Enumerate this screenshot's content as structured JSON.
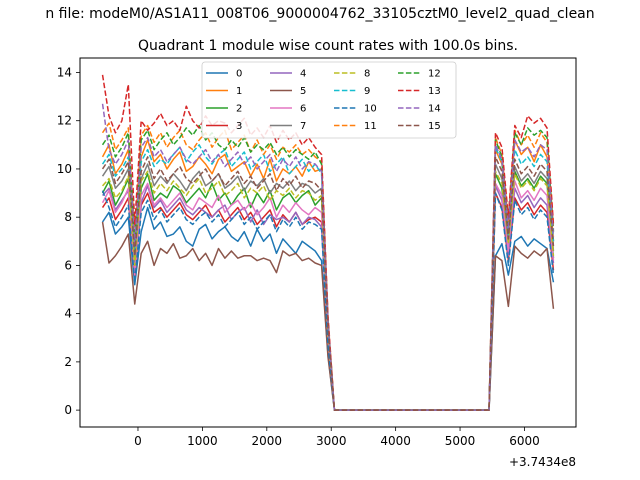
{
  "chart_data": {
    "type": "line",
    "suptitle": "n file: modeM0/AS1A11_008T06_9000004762_33105cztM0_level2_quad_clean",
    "title": "Quadrant 1 module wise count rates with 100.0s bins.",
    "x_offset_label": "+3.7434e8",
    "xlabel": "",
    "ylabel": "",
    "xlim": [
      -900,
      6800
    ],
    "ylim": [
      -0.7,
      14.6
    ],
    "xticks": [
      0,
      1000,
      2000,
      3000,
      4000,
      5000,
      6000
    ],
    "yticks": [
      0,
      2,
      4,
      6,
      8,
      10,
      12,
      14
    ],
    "grid": false,
    "legend": {
      "placement": "upper-center",
      "ncol": 4
    },
    "x_start": -550,
    "x_step": 100,
    "series": [
      {
        "name": "0",
        "color": "#1f77b4",
        "dash": "solid",
        "values": [
          7.8,
          8.2,
          7.3,
          7.6,
          8.0,
          5.2,
          7.4,
          8.4,
          7.5,
          7.8,
          7.2,
          7.3,
          7.6,
          7.0,
          6.8,
          7.5,
          7.7,
          7.1,
          7.4,
          7.6,
          7.2,
          7.0,
          7.4,
          6.8,
          7.5,
          7.0,
          7.3,
          6.5,
          7.1,
          6.8,
          6.5,
          7.0,
          6.8,
          6.6,
          6.2,
          2.3,
          0,
          0,
          0,
          0,
          0,
          0,
          0,
          0,
          0,
          0,
          0,
          0,
          0,
          0,
          0,
          0,
          0,
          0,
          0,
          0,
          0,
          0,
          0,
          0,
          0,
          6.4,
          6.9,
          5.6,
          7.0,
          7.2,
          6.8,
          7.1,
          6.9,
          6.7,
          5.3
        ]
      },
      {
        "name": "1",
        "color": "#ff7f0e",
        "dash": "solid",
        "values": [
          10.5,
          11.0,
          9.8,
          10.2,
          10.8,
          6.8,
          10.5,
          11.2,
          10.3,
          10.6,
          10.0,
          10.4,
          10.7,
          9.9,
          10.1,
          10.5,
          10.2,
          9.8,
          10.4,
          10.6,
          9.9,
          10.1,
          10.3,
          9.7,
          10.2,
          9.6,
          10.4,
          9.5,
          10.0,
          9.8,
          10.1,
          9.7,
          10.3,
          9.9,
          10.0,
          3.5,
          0,
          0,
          0,
          0,
          0,
          0,
          0,
          0,
          0,
          0,
          0,
          0,
          0,
          0,
          0,
          0,
          0,
          0,
          0,
          0,
          0,
          0,
          0,
          0,
          0,
          10.8,
          10.2,
          7.5,
          11.2,
          10.6,
          10.9,
          10.3,
          11.0,
          10.5,
          7.0
        ]
      },
      {
        "name": "2",
        "color": "#2ca02c",
        "dash": "solid",
        "values": [
          9.0,
          9.5,
          8.5,
          9.0,
          9.6,
          5.9,
          9.2,
          9.8,
          8.7,
          9.0,
          8.8,
          9.3,
          9.1,
          8.6,
          8.9,
          9.2,
          8.8,
          9.4,
          8.7,
          9.0,
          8.5,
          8.9,
          9.2,
          8.4,
          9.0,
          8.6,
          9.1,
          8.3,
          8.8,
          9.0,
          8.6,
          8.9,
          9.1,
          8.5,
          8.8,
          3.1,
          0,
          0,
          0,
          0,
          0,
          0,
          0,
          0,
          0,
          0,
          0,
          0,
          0,
          0,
          0,
          0,
          0,
          0,
          0,
          0,
          0,
          0,
          0,
          0,
          0,
          9.8,
          9.2,
          6.7,
          9.9,
          9.3,
          9.6,
          9.2,
          9.7,
          9.4,
          6.3
        ]
      },
      {
        "name": "3",
        "color": "#d62728",
        "dash": "solid",
        "values": [
          8.4,
          8.8,
          7.9,
          8.3,
          8.8,
          5.5,
          8.5,
          9.0,
          8.2,
          8.4,
          8.0,
          8.3,
          8.6,
          8.1,
          7.9,
          8.2,
          8.5,
          8.0,
          8.3,
          7.8,
          8.1,
          8.4,
          7.9,
          8.2,
          7.7,
          8.0,
          8.3,
          7.6,
          8.1,
          7.8,
          8.2,
          7.7,
          7.9,
          8.0,
          7.8,
          2.8,
          0,
          0,
          0,
          0,
          0,
          0,
          0,
          0,
          0,
          0,
          0,
          0,
          0,
          0,
          0,
          0,
          0,
          0,
          0,
          0,
          0,
          0,
          0,
          0,
          0,
          9.0,
          8.4,
          6.2,
          8.8,
          8.3,
          8.6,
          8.1,
          8.5,
          8.2,
          5.8
        ]
      },
      {
        "name": "4",
        "color": "#9467bd",
        "dash": "solid",
        "values": [
          8.9,
          9.2,
          8.3,
          8.7,
          9.1,
          5.7,
          8.6,
          9.3,
          8.4,
          8.7,
          8.2,
          8.5,
          8.8,
          8.3,
          8.1,
          8.4,
          8.2,
          8.0,
          8.3,
          8.5,
          7.9,
          8.2,
          8.4,
          7.8,
          8.3,
          7.7,
          8.1,
          7.9,
          8.0,
          7.8,
          8.2,
          7.7,
          8.0,
          7.9,
          7.6,
          2.9,
          0,
          0,
          0,
          0,
          0,
          0,
          0,
          0,
          0,
          0,
          0,
          0,
          0,
          0,
          0,
          0,
          0,
          0,
          0,
          0,
          0,
          0,
          0,
          0,
          0,
          9.3,
          8.7,
          6.4,
          9.2,
          8.6,
          8.9,
          8.4,
          8.8,
          8.5,
          6.1
        ]
      },
      {
        "name": "5",
        "color": "#8c564b",
        "dash": "solid",
        "values": [
          7.8,
          6.1,
          6.4,
          6.8,
          7.3,
          4.4,
          6.5,
          7.0,
          6.0,
          6.7,
          6.5,
          6.9,
          6.3,
          6.4,
          6.7,
          6.2,
          6.5,
          6.0,
          6.7,
          6.3,
          6.6,
          6.3,
          6.4,
          6.4,
          6.2,
          6.3,
          6.2,
          5.7,
          6.6,
          6.4,
          6.5,
          6.2,
          6.3,
          6.1,
          6.0,
          2.2,
          0,
          0,
          0,
          0,
          0,
          0,
          0,
          0,
          0,
          0,
          0,
          0,
          0,
          0,
          0,
          0,
          0,
          0,
          0,
          0,
          0,
          0,
          0,
          0,
          0,
          6.4,
          6.2,
          4.3,
          6.8,
          6.5,
          6.3,
          6.6,
          6.4,
          6.7,
          4.2
        ]
      },
      {
        "name": "6",
        "color": "#e377c2",
        "dash": "solid",
        "values": [
          8.6,
          9.1,
          8.2,
          8.6,
          9.2,
          5.6,
          8.9,
          9.4,
          8.5,
          8.8,
          8.4,
          8.7,
          9.0,
          8.5,
          8.3,
          8.8,
          8.6,
          8.4,
          8.9,
          8.2,
          8.5,
          8.7,
          8.3,
          8.6,
          8.1,
          8.4,
          8.8,
          8.0,
          8.5,
          8.2,
          8.6,
          8.3,
          8.1,
          8.4,
          8.2,
          3.0,
          0,
          0,
          0,
          0,
          0,
          0,
          0,
          0,
          0,
          0,
          0,
          0,
          0,
          0,
          0,
          0,
          0,
          0,
          0,
          0,
          0,
          0,
          0,
          0,
          0,
          9.4,
          8.9,
          6.6,
          9.5,
          8.8,
          9.1,
          8.7,
          9.2,
          8.9,
          6.2
        ]
      },
      {
        "name": "7",
        "color": "#7f7f7f",
        "dash": "solid",
        "values": [
          9.7,
          10.1,
          9.2,
          9.5,
          10.0,
          6.3,
          9.6,
          10.2,
          9.3,
          9.7,
          9.4,
          9.8,
          9.5,
          9.1,
          9.6,
          9.9,
          9.3,
          9.5,
          9.8,
          9.2,
          9.4,
          9.7,
          9.1,
          9.5,
          9.3,
          9.6,
          9.0,
          9.4,
          9.2,
          9.5,
          9.1,
          9.4,
          9.3,
          9.0,
          9.2,
          3.3,
          0,
          0,
          0,
          0,
          0,
          0,
          0,
          0,
          0,
          0,
          0,
          0,
          0,
          0,
          0,
          0,
          0,
          0,
          0,
          0,
          0,
          0,
          0,
          0,
          0,
          10.2,
          9.6,
          7.0,
          10.1,
          9.5,
          9.8,
          9.4,
          9.9,
          9.6,
          6.6
        ]
      },
      {
        "name": "8",
        "color": "#bcbd22",
        "dash": "dashed",
        "values": [
          9.3,
          9.6,
          8.8,
          9.1,
          9.7,
          6.0,
          9.5,
          9.9,
          9.0,
          9.4,
          9.1,
          9.5,
          9.2,
          8.9,
          9.3,
          9.6,
          9.0,
          9.2,
          9.5,
          8.9,
          9.1,
          9.4,
          8.8,
          9.2,
          9.0,
          9.3,
          8.7,
          9.1,
          8.9,
          9.2,
          8.8,
          9.1,
          9.0,
          8.7,
          8.9,
          3.2,
          0,
          0,
          0,
          0,
          0,
          0,
          0,
          0,
          0,
          0,
          0,
          0,
          0,
          0,
          0,
          0,
          0,
          0,
          0,
          0,
          0,
          0,
          0,
          0,
          0,
          9.9,
          9.4,
          6.9,
          9.8,
          9.2,
          9.5,
          9.1,
          9.6,
          9.3,
          6.4
        ]
      },
      {
        "name": "9",
        "color": "#17becf",
        "dash": "dashed",
        "values": [
          10.2,
          10.6,
          9.7,
          10.0,
          10.5,
          6.6,
          10.3,
          10.8,
          10.1,
          10.4,
          10.2,
          10.6,
          10.9,
          10.3,
          10.7,
          11.0,
          10.5,
          10.2,
          10.6,
          10.8,
          10.1,
          10.4,
          10.7,
          10.0,
          10.3,
          10.6,
          9.9,
          10.2,
          10.5,
          9.8,
          10.1,
          10.4,
          9.9,
          10.2,
          9.8,
          3.6,
          0,
          0,
          0,
          0,
          0,
          0,
          0,
          0,
          0,
          0,
          0,
          0,
          0,
          0,
          0,
          0,
          0,
          0,
          0,
          0,
          0,
          0,
          0,
          0,
          0,
          10.9,
          10.3,
          7.3,
          10.8,
          10.2,
          10.5,
          10.1,
          10.6,
          10.3,
          7.0
        ]
      },
      {
        "name": "10",
        "color": "#1f77b4",
        "dash": "dashed",
        "values": [
          9.1,
          8.4,
          7.6,
          8.0,
          8.5,
          5.3,
          8.2,
          8.7,
          7.9,
          8.3,
          7.8,
          8.1,
          8.4,
          7.9,
          7.7,
          8.0,
          8.2,
          7.8,
          8.1,
          7.6,
          7.9,
          8.2,
          7.7,
          8.0,
          7.5,
          7.8,
          8.1,
          7.4,
          7.9,
          7.6,
          8.0,
          7.5,
          7.8,
          7.7,
          7.5,
          2.7,
          0,
          0,
          0,
          0,
          0,
          0,
          0,
          0,
          0,
          0,
          0,
          0,
          0,
          0,
          0,
          0,
          0,
          0,
          0,
          0,
          0,
          0,
          0,
          0,
          0,
          9.0,
          8.3,
          6.0,
          8.7,
          8.1,
          8.4,
          7.9,
          8.3,
          8.0,
          5.6
        ]
      },
      {
        "name": "11",
        "color": "#ff7f0e",
        "dash": "dashed",
        "values": [
          11.5,
          11.9,
          10.8,
          11.2,
          11.7,
          7.2,
          11.4,
          11.8,
          11.1,
          11.5,
          10.9,
          11.3,
          11.6,
          11.0,
          10.8,
          11.2,
          11.5,
          10.9,
          11.3,
          11.6,
          10.8,
          11.1,
          11.4,
          10.7,
          11.2,
          10.6,
          11.0,
          10.4,
          10.9,
          10.7,
          11.0,
          10.6,
          10.8,
          10.5,
          10.3,
          3.8,
          0,
          0,
          0,
          0,
          0,
          0,
          0,
          0,
          0,
          0,
          0,
          0,
          0,
          0,
          0,
          0,
          0,
          0,
          0,
          0,
          0,
          0,
          0,
          0,
          0,
          11.3,
          10.6,
          7.8,
          11.6,
          11.0,
          11.4,
          10.9,
          11.5,
          11.1,
          7.5
        ]
      },
      {
        "name": "12",
        "color": "#2ca02c",
        "dash": "dashed",
        "values": [
          11.0,
          11.4,
          10.5,
          10.9,
          11.5,
          7.0,
          11.2,
          11.6,
          10.8,
          11.2,
          11.5,
          11.0,
          11.3,
          11.7,
          11.4,
          11.8,
          11.2,
          11.5,
          11.0,
          10.8,
          11.2,
          10.9,
          11.3,
          10.7,
          11.0,
          10.8,
          11.1,
          10.6,
          10.9,
          10.5,
          10.8,
          10.6,
          10.4,
          10.7,
          10.2,
          3.7,
          0,
          0,
          0,
          0,
          0,
          0,
          0,
          0,
          0,
          0,
          0,
          0,
          0,
          0,
          0,
          0,
          0,
          0,
          0,
          0,
          0,
          0,
          0,
          0,
          0,
          11.2,
          10.5,
          7.7,
          11.5,
          11.0,
          11.7,
          11.4,
          11.6,
          11.3,
          7.4
        ]
      },
      {
        "name": "13",
        "color": "#d62728",
        "dash": "dashed",
        "values": [
          13.9,
          12.2,
          11.5,
          12.0,
          13.5,
          7.7,
          12.0,
          11.6,
          11.9,
          12.3,
          11.8,
          12.0,
          11.6,
          12.6,
          12.0,
          11.7,
          12.2,
          11.8,
          12.0,
          11.9,
          11.5,
          11.8,
          12.1,
          11.4,
          11.7,
          11.3,
          11.8,
          11.1,
          11.6,
          11.2,
          11.5,
          11.0,
          11.3,
          10.9,
          10.6,
          3.9,
          0,
          0,
          0,
          0,
          0,
          0,
          0,
          0,
          0,
          0,
          0,
          0,
          0,
          0,
          0,
          0,
          0,
          0,
          0,
          0,
          0,
          0,
          0,
          0,
          0,
          11.5,
          10.9,
          8.0,
          11.8,
          11.3,
          12.2,
          11.9,
          12.1,
          11.7,
          7.7
        ]
      },
      {
        "name": "14",
        "color": "#9467bd",
        "dash": "dashed",
        "values": [
          12.7,
          10.8,
          10.2,
          10.6,
          11.2,
          6.9,
          10.9,
          11.3,
          10.5,
          10.8,
          10.3,
          10.6,
          10.9,
          10.4,
          10.2,
          10.5,
          10.8,
          10.3,
          10.6,
          10.1,
          10.4,
          10.7,
          10.2,
          10.5,
          10.0,
          10.3,
          10.6,
          9.9,
          10.4,
          10.1,
          10.5,
          10.0,
          10.3,
          10.2,
          9.9,
          3.6,
          0,
          0,
          0,
          0,
          0,
          0,
          0,
          0,
          0,
          0,
          0,
          0,
          0,
          0,
          0,
          0,
          0,
          0,
          0,
          0,
          0,
          0,
          0,
          0,
          0,
          11.0,
          10.4,
          7.5,
          11.2,
          10.7,
          10.9,
          10.5,
          11.0,
          10.8,
          7.2
        ]
      },
      {
        "name": "15",
        "color": "#8c564b",
        "dash": "dashed",
        "values": [
          10.0,
          10.4,
          9.4,
          9.8,
          10.3,
          6.4,
          9.9,
          10.5,
          9.6,
          10.0,
          9.5,
          9.8,
          10.1,
          9.6,
          9.4,
          9.7,
          10.0,
          9.5,
          9.8,
          9.3,
          9.6,
          9.9,
          9.4,
          9.7,
          9.2,
          9.5,
          9.8,
          9.1,
          9.6,
          9.3,
          9.7,
          9.2,
          9.5,
          9.4,
          9.1,
          3.4,
          0,
          0,
          0,
          0,
          0,
          0,
          0,
          0,
          0,
          0,
          0,
          0,
          0,
          0,
          0,
          0,
          0,
          0,
          0,
          0,
          0,
          0,
          0,
          0,
          0,
          10.5,
          9.9,
          7.1,
          10.4,
          9.8,
          10.1,
          9.7,
          10.2,
          9.9,
          6.8
        ]
      }
    ]
  }
}
